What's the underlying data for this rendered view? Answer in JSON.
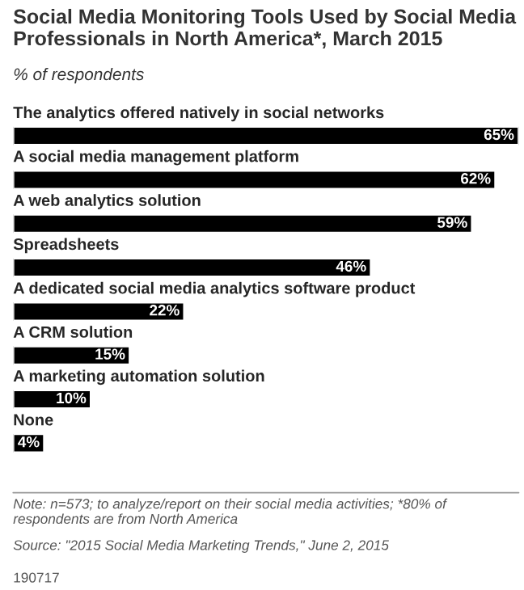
{
  "chart_data": {
    "type": "bar",
    "orientation": "horizontal",
    "title": "Social Media Monitoring Tools Used by Social Media Professionals in North America*, March 2015",
    "subtitle": "% of respondents",
    "categories": [
      "The analytics offered natively in social networks",
      "A social media management platform",
      "A web analytics solution",
      "Spreadsheets",
      "A dedicated social media analytics software product",
      "A CRM solution",
      "A marketing automation solution",
      "None"
    ],
    "values": [
      65,
      62,
      59,
      46,
      22,
      15,
      10,
      4
    ],
    "value_labels": [
      "65%",
      "62%",
      "59%",
      "46%",
      "22%",
      "15%",
      "10%",
      "4%"
    ],
    "color": "#000000",
    "annotations": [
      "Note: n=573; to analyze/report on their social media activities; *80% of respondents are from North America",
      "Source: \"2015 Social Media Marketing Trends,\" June 2, 2015",
      "190717"
    ]
  }
}
